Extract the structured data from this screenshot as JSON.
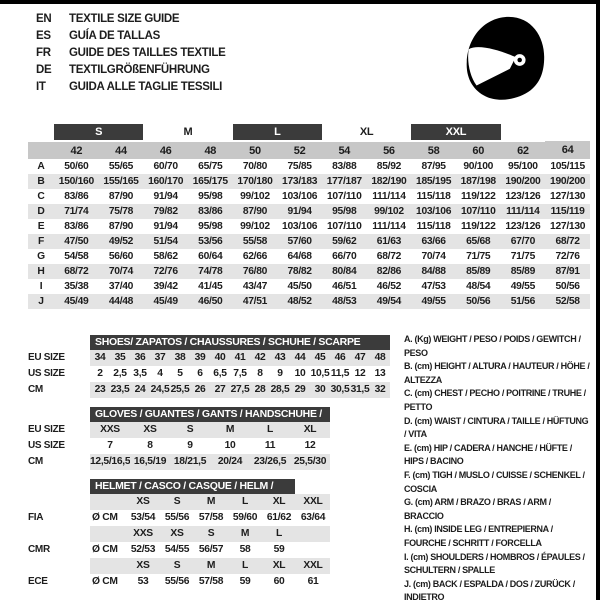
{
  "colors": {
    "dark_bar": "#3b3b3b",
    "band_light": "#e4e4e4",
    "band_mid": "#c7c7c7",
    "text": "#1d1d1d",
    "border": "#000000"
  },
  "header": {
    "languages": [
      {
        "code": "EN",
        "label": "TEXTILE SIZE GUIDE"
      },
      {
        "code": "ES",
        "label": "GUÍA DE TALLAS"
      },
      {
        "code": "FR",
        "label": "GUIDE DES TAILLES TEXTILE"
      },
      {
        "code": "DE",
        "label": "TEXTILGRÖßENFÜHRUNG"
      },
      {
        "code": "IT",
        "label": "GUIDA ALLE TAGLIE TESSILI"
      }
    ],
    "icon": "racing-helmet-icon"
  },
  "main_table": {
    "size_groups": [
      {
        "label": "",
        "span": 1,
        "dark": false
      },
      {
        "label": "S",
        "span": 2,
        "dark": true
      },
      {
        "label": "M",
        "span": 2,
        "dark": false
      },
      {
        "label": "L",
        "span": 2,
        "dark": true
      },
      {
        "label": "XL",
        "span": 2,
        "dark": false
      },
      {
        "label": "XXL",
        "span": 2,
        "dark": true
      },
      {
        "label": "",
        "span": 1,
        "dark": false
      }
    ],
    "columns": [
      "42",
      "44",
      "46",
      "48",
      "50",
      "52",
      "54",
      "56",
      "58",
      "60",
      "62",
      "64"
    ],
    "rows": [
      {
        "label": "A",
        "values": [
          "50/60",
          "55/65",
          "60/70",
          "65/75",
          "70/80",
          "75/85",
          "83/88",
          "85/92",
          "87/95",
          "90/100",
          "95/100",
          "105/115"
        ]
      },
      {
        "label": "B",
        "values": [
          "150/160",
          "155/165",
          "160/170",
          "165/175",
          "170/180",
          "173/183",
          "177/187",
          "182/190",
          "185/195",
          "187/198",
          "190/200",
          "190/200"
        ]
      },
      {
        "label": "C",
        "values": [
          "83/86",
          "87/90",
          "91/94",
          "95/98",
          "99/102",
          "103/106",
          "107/110",
          "111/114",
          "115/118",
          "119/122",
          "123/126",
          "127/130"
        ]
      },
      {
        "label": "D",
        "values": [
          "71/74",
          "75/78",
          "79/82",
          "83/86",
          "87/90",
          "91/94",
          "95/98",
          "99/102",
          "103/106",
          "107/110",
          "111/114",
          "115/119"
        ]
      },
      {
        "label": "E",
        "values": [
          "83/86",
          "87/90",
          "91/94",
          "95/98",
          "99/102",
          "103/106",
          "107/110",
          "111/114",
          "115/118",
          "119/122",
          "123/126",
          "127/130"
        ]
      },
      {
        "label": "F",
        "values": [
          "47/50",
          "49/52",
          "51/54",
          "53/56",
          "55/58",
          "57/60",
          "59/62",
          "61/63",
          "63/66",
          "65/68",
          "67/70",
          "68/72"
        ]
      },
      {
        "label": "G",
        "values": [
          "54/58",
          "56/60",
          "58/62",
          "60/64",
          "62/66",
          "64/68",
          "66/70",
          "68/72",
          "70/74",
          "71/75",
          "71/75",
          "72/76"
        ]
      },
      {
        "label": "H",
        "values": [
          "68/72",
          "70/74",
          "72/76",
          "74/78",
          "76/80",
          "78/82",
          "80/84",
          "82/86",
          "84/88",
          "85/89",
          "85/89",
          "87/91"
        ]
      },
      {
        "label": "I",
        "values": [
          "35/38",
          "37/40",
          "39/42",
          "41/45",
          "43/47",
          "45/50",
          "46/51",
          "46/52",
          "47/53",
          "48/54",
          "49/55",
          "50/56"
        ]
      },
      {
        "label": "J",
        "values": [
          "45/49",
          "44/48",
          "45/49",
          "46/50",
          "47/51",
          "48/52",
          "48/53",
          "49/54",
          "49/55",
          "50/56",
          "51/56",
          "52/58"
        ]
      }
    ]
  },
  "shoes": {
    "title": "SHOES/ ZAPATOS / CHAUSSURES / SCHUHE / SCARPE",
    "rows": [
      {
        "label": "EU SIZE",
        "band": true,
        "values": [
          "34",
          "35",
          "36",
          "37",
          "38",
          "39",
          "40",
          "41",
          "42",
          "43",
          "44",
          "45",
          "46",
          "47",
          "48"
        ]
      },
      {
        "label": "US SIZE",
        "band": false,
        "values": [
          "2",
          "2,5",
          "3,5",
          "4",
          "5",
          "6",
          "6,5",
          "7,5",
          "8",
          "9",
          "10",
          "10,5",
          "11,5",
          "12",
          "13"
        ]
      },
      {
        "label": "CM",
        "band": true,
        "values": [
          "23",
          "23,5",
          "24",
          "24,5",
          "25,5",
          "26",
          "27",
          "27,5",
          "28",
          "28,5",
          "29",
          "30",
          "30,5",
          "31,5",
          "32"
        ]
      }
    ]
  },
  "gloves": {
    "title": "GLOVES / GUANTES / GANTS / HANDSCHUHE / GUANTI",
    "rows": [
      {
        "label": "EU SIZE",
        "band": true,
        "values": [
          "XXS",
          "XS",
          "S",
          "M",
          "L",
          "XL"
        ]
      },
      {
        "label": "US SIZE",
        "band": false,
        "values": [
          "7",
          "8",
          "9",
          "10",
          "11",
          "12"
        ]
      },
      {
        "label": "CM",
        "band": true,
        "values": [
          "12,5/16,5",
          "16,5/19",
          "18/21,5",
          "20/24",
          "23/26,5",
          "25,5/30"
        ]
      }
    ]
  },
  "helmet_guide": {
    "title": "HELMET / CASCO / CASQUE / HELM / CASCO",
    "unit": "Ø CM",
    "standards": [
      {
        "name": "FIA",
        "sizes": [
          "XS",
          "S",
          "M",
          "L",
          "XL",
          "XXL"
        ],
        "values": [
          "53/54",
          "55/56",
          "57/58",
          "59/60",
          "61/62",
          "63/64"
        ]
      },
      {
        "name": "CMR",
        "sizes": [
          "XXS",
          "XS",
          "S",
          "M",
          "L",
          ""
        ],
        "values": [
          "52/53",
          "54/55",
          "56/57",
          "58",
          "59",
          ""
        ]
      },
      {
        "name": "ECE",
        "sizes": [
          "XS",
          "S",
          "M",
          "L",
          "XL",
          "XXL"
        ],
        "values": [
          "53",
          "55/56",
          "57/58",
          "59",
          "60",
          "61"
        ]
      }
    ]
  },
  "legend": {
    "items": [
      "A. (Kg) WEIGHT / PESO / POIDS / GEWITCH / PESO",
      "B. (cm) HEIGHT / ALTURA / HAUTEUR / HÖHE / ALTEZZA",
      "C. (cm) CHEST / PECHO / POITRINE / TRUHE / PETTO",
      "D. (cm) WAIST / CINTURA / TAILLE / HÜFTUNG / VITA",
      "E. (cm) HIP / CADERA / HANCHE / HÜFTE / HIPS /  BACINO",
      "F. (cm) TIGH / MUSLO / CUISSE / SCHENKEL / COSCIA",
      "G. (cm) ARM  / BRAZO / BRAS / ARM / BRACCIO",
      "H. (cm) INSIDE LEG / ENTREPIERNA / FOURCHE / SCHRITT / FORCELLA",
      "I.  (cm) SHOULDERS / HOMBROS / ÉPAULES / SCHULTERN / SPALLE",
      "J. (cm) BACK / ESPALDA / DOS / ZURÜCK / INDIETRO"
    ]
  }
}
